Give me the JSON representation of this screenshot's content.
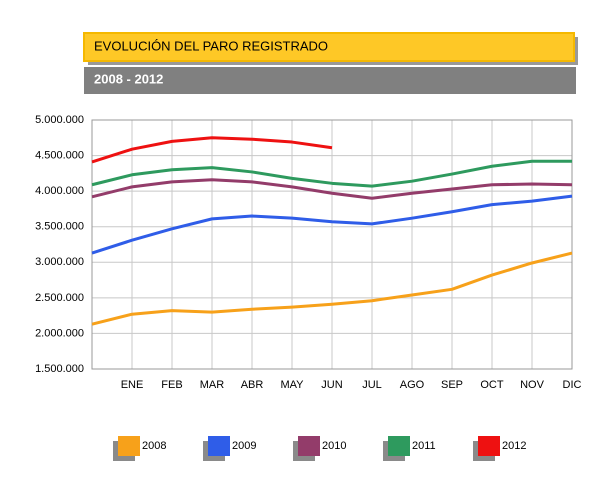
{
  "chart_data": {
    "type": "line",
    "title": "EVOLUCIÓN DEL PARO REGISTRADO",
    "subtitle": "2008 - 2012",
    "categories": [
      null,
      "ENE",
      "FEB",
      "MAR",
      "ABR",
      "MAY",
      "JUN",
      "JUL",
      "AGO",
      "SEP",
      "OCT",
      "NOV",
      "DIC"
    ],
    "series": [
      {
        "name": "2008",
        "color": "#f7a11a",
        "values": [
          2130000,
          2270000,
          2320000,
          2300000,
          2340000,
          2370000,
          2410000,
          2460000,
          2540000,
          2620000,
          2820000,
          2990000,
          3130000
        ]
      },
      {
        "name": "2009",
        "color": "#2f5de8",
        "values": [
          3130000,
          3310000,
          3470000,
          3610000,
          3650000,
          3620000,
          3570000,
          3540000,
          3620000,
          3710000,
          3810000,
          3860000,
          3930000
        ]
      },
      {
        "name": "2010",
        "color": "#933c6a",
        "values": [
          3920000,
          4060000,
          4130000,
          4160000,
          4130000,
          4060000,
          3970000,
          3900000,
          3970000,
          4030000,
          4090000,
          4100000,
          4090000
        ]
      },
      {
        "name": "2011",
        "color": "#2e9a5e",
        "values": [
          4090000,
          4230000,
          4300000,
          4330000,
          4270000,
          4180000,
          4110000,
          4070000,
          4140000,
          4240000,
          4350000,
          4420000,
          4420000
        ]
      },
      {
        "name": "2012",
        "color": "#ee1111",
        "values": [
          4410000,
          4590000,
          4700000,
          4750000,
          4730000,
          4690000,
          4610000,
          null,
          null,
          null,
          null,
          null,
          null
        ]
      }
    ],
    "ylim": [
      1500000,
      5000000
    ],
    "yticks": [
      {
        "value": 1500000,
        "label": "1.500.000"
      },
      {
        "value": 2000000,
        "label": "2.000.000"
      },
      {
        "value": 2500000,
        "label": "2.500.000"
      },
      {
        "value": 3000000,
        "label": "3.000.000"
      },
      {
        "value": 3500000,
        "label": "3.500.000"
      },
      {
        "value": 4000000,
        "label": "4.000.000"
      },
      {
        "value": 4500000,
        "label": "4.500.000"
      },
      {
        "value": 5000000,
        "label": "5.000.000"
      }
    ],
    "grid": true
  }
}
